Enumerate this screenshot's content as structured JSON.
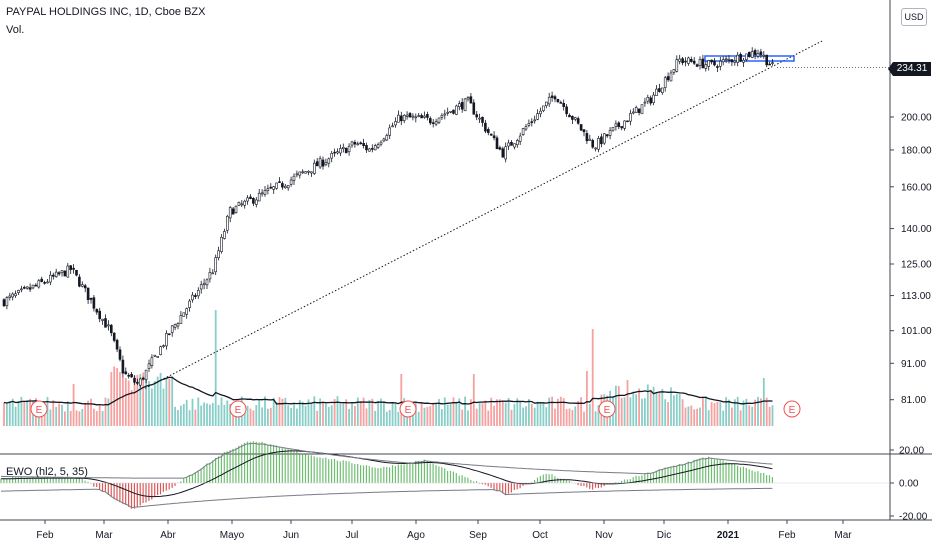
{
  "header": {
    "title": "PAYPAL HOLDINGS INC, 1D, Cboe BZX",
    "volume_label": "Vol.",
    "currency": "USD",
    "last_price": "234.31"
  },
  "ewo": {
    "label": "EWO (hl2, 5, 35)",
    "y_ticks": [
      "20.00",
      "0.00",
      "-20.00"
    ]
  },
  "earnings_marker": "E",
  "colors": {
    "up": "#26a69a",
    "down": "#ef5350",
    "ewo_pos": "#4caf50",
    "ewo_neg": "#d32f2f",
    "text": "#131722",
    "zone": "#2962ff"
  },
  "chart_data": [
    {
      "type": "candlestick",
      "title": "PAYPAL HOLDINGS INC, 1D, Cboe BZX",
      "x_ticks": [
        "Feb",
        "Mar",
        "Abr",
        "Mayo",
        "Jun",
        "Jul",
        "Ago",
        "Sep",
        "Oct",
        "Nov",
        "Dic",
        "2021",
        "Feb",
        "Mar"
      ],
      "y_ticks": [
        "81.00",
        "91.00",
        "101.00",
        "113.00",
        "125.00",
        "140.00",
        "160.00",
        "180.00",
        "200.00",
        "234.31"
      ],
      "scale": "log",
      "ylim": [
        78,
        260
      ],
      "approx_close_path": [
        {
          "date": "2020-01-17",
          "close": 111
        },
        {
          "date": "2020-02-19",
          "close": 123
        },
        {
          "date": "2020-03-09",
          "close": 101
        },
        {
          "date": "2020-03-16",
          "close": 88
        },
        {
          "date": "2020-03-23",
          "close": 85
        },
        {
          "date": "2020-04-08",
          "close": 101
        },
        {
          "date": "2020-04-29",
          "close": 123
        },
        {
          "date": "2020-05-07",
          "close": 148
        },
        {
          "date": "2020-06-05",
          "close": 163
        },
        {
          "date": "2020-07-08",
          "close": 184
        },
        {
          "date": "2020-07-15",
          "close": 180
        },
        {
          "date": "2020-07-30",
          "close": 200
        },
        {
          "date": "2020-08-14",
          "close": 198
        },
        {
          "date": "2020-09-01",
          "close": 210
        },
        {
          "date": "2020-09-18",
          "close": 178
        },
        {
          "date": "2020-10-14",
          "close": 215
        },
        {
          "date": "2020-11-02",
          "close": 182
        },
        {
          "date": "2020-11-30",
          "close": 212
        },
        {
          "date": "2020-12-14",
          "close": 240
        },
        {
          "date": "2020-12-30",
          "close": 236
        },
        {
          "date": "2021-01-22",
          "close": 247
        },
        {
          "date": "2021-01-29",
          "close": 234.31
        }
      ],
      "annotations": [
        "dotted rising trendline from March 2020 low",
        "horizontal resistance zone near 240"
      ]
    },
    {
      "type": "bar",
      "title": "Vol.",
      "note": "daily volume bars with moving average line; earnings markers E"
    },
    {
      "type": "bar",
      "title": "EWO (hl2, 5, 35)",
      "ylim": [
        -22,
        30
      ],
      "y_ticks": [
        20,
        0,
        -20
      ],
      "approx_values": [
        {
          "date": "2020-01-17",
          "value": 3
        },
        {
          "date": "2020-02-24",
          "value": 3
        },
        {
          "date": "2020-03-20",
          "value": -16
        },
        {
          "date": "2020-04-08",
          "value": -3
        },
        {
          "date": "2020-05-05",
          "value": 19
        },
        {
          "date": "2020-05-18",
          "value": 26
        },
        {
          "date": "2020-06-15",
          "value": 17
        },
        {
          "date": "2020-07-20",
          "value": 9
        },
        {
          "date": "2020-08-10",
          "value": 14
        },
        {
          "date": "2020-09-20",
          "value": -7
        },
        {
          "date": "2020-10-10",
          "value": 6
        },
        {
          "date": "2020-11-01",
          "value": -4
        },
        {
          "date": "2020-12-10",
          "value": 10
        },
        {
          "date": "2020-12-28",
          "value": 16
        },
        {
          "date": "2021-01-29",
          "value": 4
        }
      ]
    }
  ]
}
